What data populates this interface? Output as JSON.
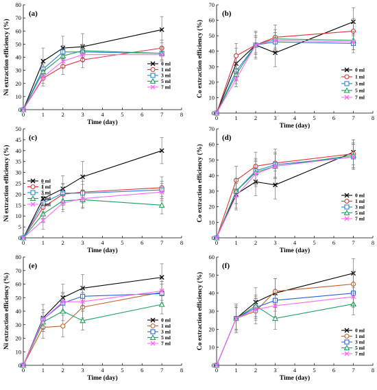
{
  "chart_data": [
    {
      "panel": "(a)",
      "type": "line",
      "xlabel": "Time (day)",
      "ylabel": "Ni extraction efficiency (%)",
      "xlim": [
        0,
        8
      ],
      "ylim": [
        0,
        80
      ],
      "xticks": [
        "0",
        "1",
        "2",
        "3",
        "4",
        "5",
        "6",
        "7",
        "8"
      ],
      "yticks": [
        "0",
        "10",
        "20",
        "30",
        "40",
        "50",
        "60",
        "70",
        "80"
      ],
      "x": [
        0,
        1,
        2,
        3,
        7
      ],
      "legend_position": "bottom-right",
      "series": [
        {
          "name": "0 ml",
          "color": "#000000",
          "marker": "x",
          "values": [
            0,
            37,
            47,
            48,
            61
          ],
          "errors": [
            0,
            10,
            9,
            10,
            10
          ]
        },
        {
          "name": "1 ml",
          "color": "#e03030",
          "marker": "circle",
          "values": [
            0,
            24,
            33,
            38,
            47
          ],
          "errors": [
            0,
            6,
            6,
            6,
            6
          ]
        },
        {
          "name": "3 ml",
          "color": "#2a7fd4",
          "marker": "square",
          "values": [
            0,
            31,
            44,
            44,
            43
          ],
          "errors": [
            0,
            5,
            5,
            5,
            5
          ]
        },
        {
          "name": "5 ml",
          "color": "#1aa05a",
          "marker": "triangle",
          "values": [
            0,
            29,
            41,
            45,
            43
          ],
          "errors": [
            0,
            5,
            5,
            5,
            5
          ]
        },
        {
          "name": "7 ml",
          "color": "#ff66ff",
          "marker": "x",
          "values": [
            0,
            25,
            37,
            42,
            42
          ],
          "errors": [
            0,
            5,
            5,
            5,
            5
          ]
        }
      ]
    },
    {
      "panel": "(b)",
      "type": "line",
      "xlabel": "Time (day)",
      "ylabel": "Co extraction efficiency (%)",
      "xlim": [
        0,
        8
      ],
      "ylim": [
        0,
        70
      ],
      "xticks": [
        "0",
        "1",
        "2",
        "3",
        "4",
        "5",
        "6",
        "7",
        "8"
      ],
      "yticks": [
        "0",
        "10",
        "20",
        "30",
        "40",
        "50",
        "60",
        "70"
      ],
      "x": [
        0,
        1,
        2,
        3,
        7
      ],
      "legend_position": "bottom-right",
      "series": [
        {
          "name": "0 ml",
          "color": "#000000",
          "marker": "x",
          "values": [
            0,
            32,
            44,
            39,
            59
          ],
          "errors": [
            0,
            10,
            9,
            9,
            9
          ]
        },
        {
          "name": "1 ml",
          "color": "#e03030",
          "marker": "circle",
          "values": [
            0,
            37,
            44,
            49,
            53
          ],
          "errors": [
            0,
            8,
            8,
            8,
            8
          ]
        },
        {
          "name": "3 ml",
          "color": "#2a7fd4",
          "marker": "square",
          "values": [
            0,
            27,
            44,
            46,
            45
          ],
          "errors": [
            0,
            6,
            6,
            6,
            6
          ]
        },
        {
          "name": "5 ml",
          "color": "#1aa05a",
          "marker": "triangle",
          "values": [
            0,
            25,
            44,
            48,
            47
          ],
          "errors": [
            0,
            6,
            6,
            6,
            6
          ]
        },
        {
          "name": "7 ml",
          "color": "#ff66ff",
          "marker": "x",
          "values": [
            0,
            22,
            44,
            47,
            46
          ],
          "errors": [
            0,
            5,
            5,
            5,
            5
          ]
        }
      ]
    },
    {
      "panel": "(c)",
      "type": "line",
      "xlabel": "Time (day)",
      "ylabel": "Ni extraction efficiency (%)",
      "xlim": [
        0,
        8
      ],
      "ylim": [
        0,
        50
      ],
      "xticks": [
        "0",
        "1",
        "2",
        "3",
        "4",
        "5",
        "6",
        "7",
        "8"
      ],
      "yticks": [
        "0",
        "5",
        "10",
        "15",
        "20",
        "25",
        "30",
        "35",
        "40",
        "45",
        "50"
      ],
      "x": [
        0,
        1,
        2,
        3,
        7
      ],
      "legend_position": "top-left",
      "series": [
        {
          "name": "0 ml",
          "color": "#000000",
          "marker": "x",
          "values": [
            0,
            18,
            22.5,
            28,
            40
          ],
          "errors": [
            0,
            7,
            6,
            7,
            6
          ]
        },
        {
          "name": "1 ml",
          "color": "#e03030",
          "marker": "circle",
          "values": [
            0,
            14,
            20,
            21,
            23
          ],
          "errors": [
            0,
            5,
            5,
            5,
            5
          ]
        },
        {
          "name": "3 ml",
          "color": "#2a7fd4",
          "marker": "square",
          "values": [
            0,
            16,
            20.5,
            20.5,
            22
          ],
          "errors": [
            0,
            4,
            4,
            4,
            4
          ]
        },
        {
          "name": "5 ml",
          "color": "#1aa05a",
          "marker": "triangle",
          "values": [
            0,
            11,
            17,
            17.5,
            15
          ],
          "errors": [
            0,
            4,
            4,
            4,
            4
          ]
        },
        {
          "name": "7 ml",
          "color": "#ff66ff",
          "marker": "x",
          "values": [
            0,
            8,
            16,
            18,
            21
          ],
          "errors": [
            0,
            4,
            4,
            4,
            4
          ]
        }
      ]
    },
    {
      "panel": "(d)",
      "type": "line",
      "xlabel": "Time (day)",
      "ylabel": "Co extraction efficiency (%)",
      "xlim": [
        0,
        8
      ],
      "ylim": [
        0,
        70
      ],
      "xticks": [
        "0",
        "1",
        "2",
        "3",
        "4",
        "5",
        "6",
        "7",
        "8"
      ],
      "yticks": [
        "0",
        "10",
        "20",
        "30",
        "40",
        "50",
        "60",
        "70"
      ],
      "x": [
        0,
        1,
        2,
        3,
        7
      ],
      "legend_position": "bottom-right",
      "series": [
        {
          "name": "0 ml",
          "color": "#000000",
          "marker": "x",
          "values": [
            0,
            28,
            36,
            34,
            55
          ],
          "errors": [
            0,
            10,
            9,
            9,
            8
          ]
        },
        {
          "name": "1 ml",
          "color": "#e03030",
          "marker": "circle",
          "values": [
            0,
            37,
            46,
            48,
            54
          ],
          "errors": [
            0,
            9,
            9,
            9,
            9
          ]
        },
        {
          "name": "3 ml",
          "color": "#2a7fd4",
          "marker": "square",
          "values": [
            0,
            30,
            43,
            47,
            52
          ],
          "errors": [
            0,
            8,
            8,
            8,
            8
          ]
        },
        {
          "name": "5 ml",
          "color": "#1aa05a",
          "marker": "triangle",
          "values": [
            0,
            30,
            42,
            46,
            53
          ],
          "errors": [
            0,
            8,
            8,
            8,
            8
          ]
        },
        {
          "name": "7 ml",
          "color": "#ff66ff",
          "marker": "x",
          "values": [
            0,
            27,
            41,
            46,
            52
          ],
          "errors": [
            0,
            8,
            8,
            8,
            8
          ]
        }
      ]
    },
    {
      "panel": "(e)",
      "type": "line",
      "xlabel": "Time (day)",
      "ylabel": "Ni extraction efficiency (%)",
      "xlim": [
        0,
        8
      ],
      "ylim": [
        0,
        80
      ],
      "xticks": [
        "0",
        "1",
        "2",
        "3",
        "4",
        "5",
        "6",
        "7",
        "8"
      ],
      "yticks": [
        "0",
        "10",
        "20",
        "30",
        "40",
        "50",
        "60",
        "70",
        "80"
      ],
      "x": [
        0,
        1,
        2,
        3,
        7
      ],
      "legend_position": "bottom-right",
      "series": [
        {
          "name": "0 ml",
          "color": "#000000",
          "marker": "x",
          "values": [
            0,
            35,
            50,
            57,
            65
          ],
          "errors": [
            0,
            10,
            10,
            10,
            10
          ]
        },
        {
          "name": "1 ml",
          "color": "#c0602a",
          "marker": "circle",
          "values": [
            0,
            28,
            29,
            43,
            54
          ],
          "errors": [
            0,
            8,
            8,
            8,
            8
          ]
        },
        {
          "name": "3 ml",
          "color": "#2a5fd4",
          "marker": "square",
          "values": [
            0,
            34,
            46,
            51,
            53
          ],
          "errors": [
            0,
            7,
            7,
            7,
            7
          ]
        },
        {
          "name": "5 ml",
          "color": "#1aa05a",
          "marker": "triangle",
          "values": [
            0,
            32,
            40,
            33,
            45
          ],
          "errors": [
            0,
            7,
            7,
            7,
            7
          ]
        },
        {
          "name": "7 ml",
          "color": "#ff66ff",
          "marker": "x",
          "values": [
            0,
            34,
            47,
            47,
            55
          ],
          "errors": [
            0,
            7,
            7,
            7,
            7
          ]
        }
      ]
    },
    {
      "panel": "(f)",
      "type": "line",
      "xlabel": "Time (day)",
      "ylabel": "Co extraction efficiency (%)",
      "xlim": [
        0,
        8
      ],
      "ylim": [
        0,
        60
      ],
      "xticks": [
        "0",
        "1",
        "2",
        "3",
        "4",
        "5",
        "6",
        "7",
        "8"
      ],
      "yticks": [
        "0",
        "10",
        "20",
        "30",
        "40",
        "50",
        "60"
      ],
      "x": [
        0,
        1,
        2,
        3,
        7
      ],
      "legend_position": "bottom-right",
      "series": [
        {
          "name": "0 ml",
          "color": "#000000",
          "marker": "x",
          "values": [
            0,
            26,
            35,
            40,
            51
          ],
          "errors": [
            0,
            8,
            8,
            8,
            8
          ]
        },
        {
          "name": "1 ml",
          "color": "#c0602a",
          "marker": "circle",
          "values": [
            0,
            26,
            30,
            41,
            45
          ],
          "errors": [
            0,
            7,
            7,
            7,
            7
          ]
        },
        {
          "name": "3 ml",
          "color": "#2a5fd4",
          "marker": "square",
          "values": [
            0,
            26,
            32,
            36,
            40
          ],
          "errors": [
            0,
            6,
            6,
            6,
            6
          ]
        },
        {
          "name": "5 ml",
          "color": "#1aa05a",
          "marker": "triangle",
          "values": [
            0,
            26,
            33,
            26,
            34
          ],
          "errors": [
            0,
            6,
            6,
            6,
            6
          ]
        },
        {
          "name": "7 ml",
          "color": "#ff66ff",
          "marker": "x",
          "values": [
            0,
            26,
            31,
            33,
            38
          ],
          "errors": [
            0,
            6,
            6,
            6,
            6
          ]
        }
      ]
    }
  ]
}
